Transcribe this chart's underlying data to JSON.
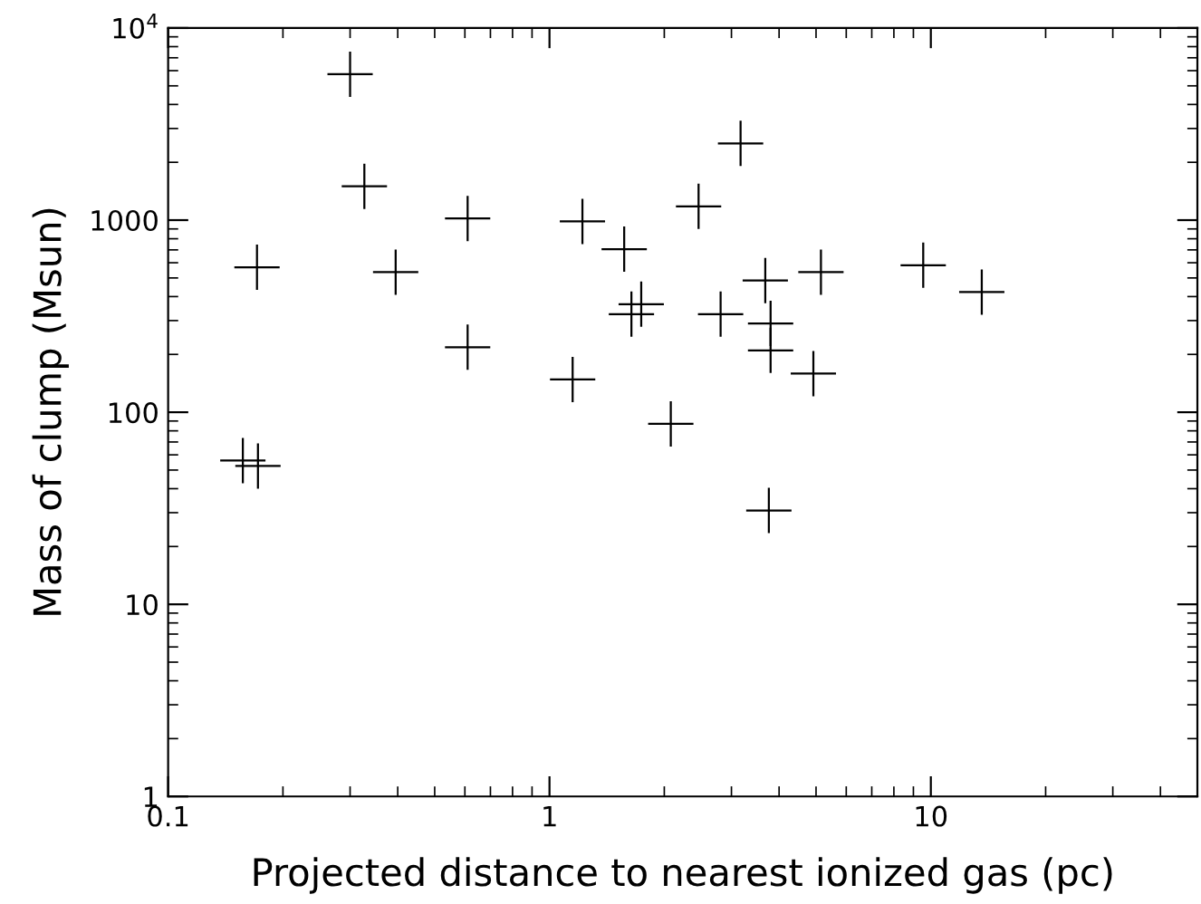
{
  "chart_data": {
    "type": "scatter",
    "xlabel": "Projected distance to nearest ionized gas (pc)",
    "ylabel": "Mass of clump (Msun)",
    "log": "xy",
    "marker": "cross",
    "grid": false,
    "legend": false,
    "xlim": [
      0.1,
      50
    ],
    "ylim": [
      1,
      10000
    ],
    "xticks": [
      0.1,
      1,
      10
    ],
    "yticks": [
      1,
      10,
      100,
      1000,
      {
        "value": 10000,
        "label": "10$^{4}$"
      }
    ],
    "series": [
      {
        "color": "#000000",
        "x": [
          0.3,
          0.327,
          0.171,
          0.395,
          0.61,
          0.61,
          1.22,
          1.15,
          1.57,
          1.64,
          1.74,
          2.08,
          2.46,
          3.17,
          2.81,
          3.68,
          3.8,
          3.8,
          5.15,
          4.92,
          9.55,
          13.6,
          0.157,
          0.172,
          3.76
        ],
        "values": [
          5750,
          1500,
          568,
          536,
          1020,
          218,
          985,
          148,
          706,
          324,
          365,
          87,
          1180,
          2510,
          324,
          485,
          290,
          210,
          536,
          159,
          582,
          422,
          56,
          52.5,
          30.8
        ]
      }
    ]
  }
}
